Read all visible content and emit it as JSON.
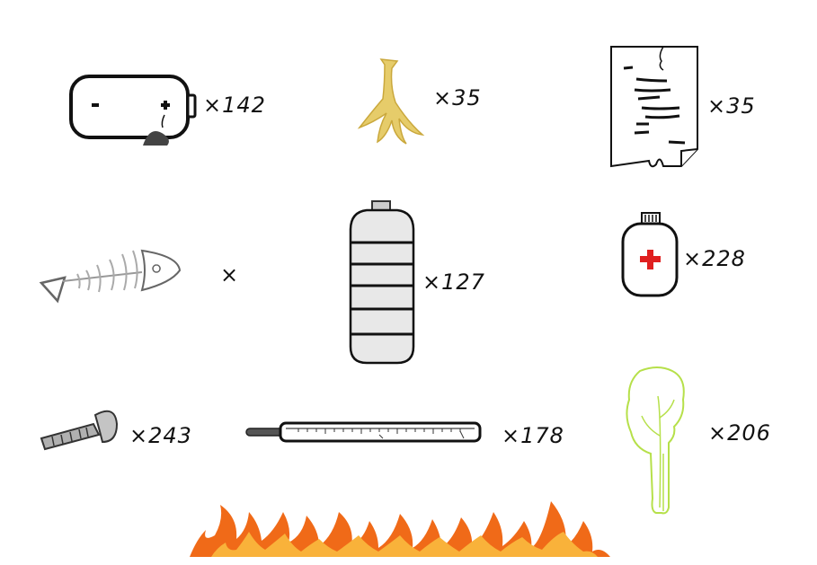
{
  "items": [
    {
      "name": "battery",
      "count": "×142"
    },
    {
      "name": "banana-peel",
      "count": "×35"
    },
    {
      "name": "torn-paper",
      "count": "×35"
    },
    {
      "name": "fish-bone",
      "count": "×"
    },
    {
      "name": "plastic-bottle",
      "count": "×127"
    },
    {
      "name": "medicine-bottle",
      "count": "×228"
    },
    {
      "name": "screw",
      "count": "×243"
    },
    {
      "name": "thermometer",
      "count": "×178"
    },
    {
      "name": "vegetable-leaf",
      "count": "×206"
    }
  ],
  "icons": [
    "battery-icon",
    "banana-peel-icon",
    "torn-paper-icon",
    "fish-bone-icon",
    "plastic-bottle-icon",
    "medicine-bottle-icon",
    "screw-icon",
    "thermometer-icon",
    "vegetable-leaf-icon",
    "fire-icon"
  ],
  "colors": {
    "banana": "#e6cc6a",
    "medical_cross": "#e02020",
    "leaf": "#b6e04a",
    "fire_outer": "#f06a18",
    "fire_inner": "#f9b23a"
  }
}
